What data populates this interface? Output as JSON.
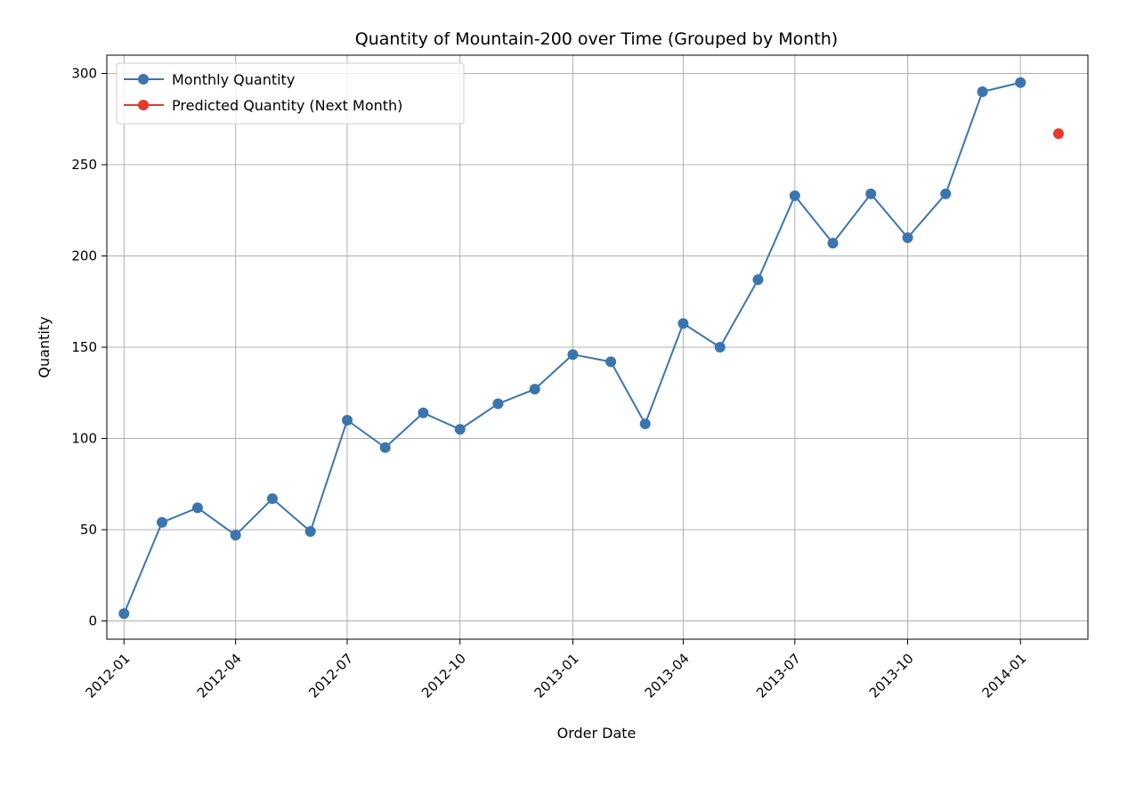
{
  "chart_data": {
    "type": "line",
    "title": "Quantity of Mountain-200 over Time (Grouped by Month)",
    "xlabel": "Order Date",
    "ylabel": "Quantity",
    "ylim": [
      -10,
      310
    ],
    "xlim": [
      "2011-12-18",
      "2014-02-25"
    ],
    "yticks": [
      0,
      50,
      100,
      150,
      200,
      250,
      300
    ],
    "xticks": [
      "2012-01",
      "2012-04",
      "2012-07",
      "2012-10",
      "2013-01",
      "2013-04",
      "2013-07",
      "2013-10",
      "2014-01"
    ],
    "grid": true,
    "legend_position": "top-left",
    "series": [
      {
        "name": "Monthly Quantity",
        "color": "#3b75af",
        "marker": "circle",
        "line": true,
        "x": [
          "2012-01-01",
          "2012-02-01",
          "2012-03-01",
          "2012-04-01",
          "2012-05-01",
          "2012-06-01",
          "2012-07-01",
          "2012-08-01",
          "2012-09-01",
          "2012-10-01",
          "2012-11-01",
          "2012-12-01",
          "2013-01-01",
          "2013-02-01",
          "2013-03-01",
          "2013-04-01",
          "2013-05-01",
          "2013-06-01",
          "2013-07-01",
          "2013-08-01",
          "2013-09-01",
          "2013-10-01",
          "2013-11-01",
          "2013-12-01",
          "2014-01-01"
        ],
        "values": [
          4,
          54,
          62,
          47,
          67,
          49,
          110,
          95,
          114,
          105,
          119,
          127,
          146,
          142,
          108,
          163,
          150,
          187,
          233,
          207,
          234,
          210,
          234,
          290,
          295
        ]
      },
      {
        "name": "Predicted Quantity (Next Month)",
        "color": "#e8392b",
        "marker": "circle",
        "line": false,
        "x": [
          "2014-02-01"
        ],
        "values": [
          267
        ]
      }
    ]
  }
}
